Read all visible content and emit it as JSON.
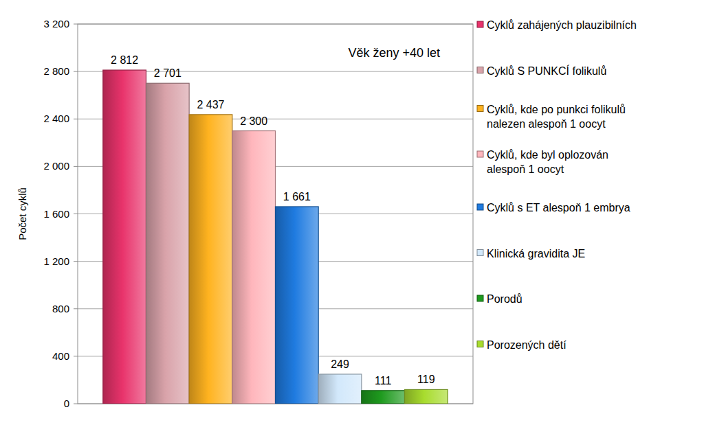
{
  "chart_data": {
    "type": "bar",
    "y_label": "Počet cyklů",
    "annotation": "Věk ženy +40 let",
    "categories": [
      "Cyklů zahájených plauzibilních",
      "Cyklů S PUNKCÍ folikulů",
      "Cyklů, kde po punkci folikulů nalezen alespoň 1 oocyt",
      "Cyklů, kde byl oplozován alespoň 1 oocyt",
      "Cyklů s ET alespoň 1 embrya",
      "Klinická gravidita JE",
      "Porodů",
      "Porozených dětí"
    ],
    "values": [
      2812,
      2701,
      2437,
      2300,
      1661,
      249,
      111,
      119
    ],
    "value_labels": [
      "2 812",
      "2 701",
      "2 437",
      "2 300",
      "1 661",
      "249",
      "111",
      "119"
    ],
    "colors": [
      "#e8336b",
      "#d9a3aa",
      "#ffb320",
      "#ffb6bc",
      "#1f7be0",
      "#d2e8fb",
      "#1e9a1e",
      "#a8dc2e"
    ],
    "ylim": [
      0,
      3200
    ],
    "yticks": [
      0,
      {
        "value": 400,
        "label": "400"
      },
      {
        "value": 800,
        "label": "800"
      },
      {
        "value": 1200,
        "label": "1 200"
      },
      {
        "value": 1600,
        "label": "1 600"
      },
      {
        "value": 2000,
        "label": "2 000"
      },
      {
        "value": 2400,
        "label": "2 400"
      },
      {
        "value": 2800,
        "label": "2 800"
      },
      {
        "value": 3200,
        "label": "3 200"
      }
    ],
    "grid": true,
    "legend": "right",
    "data_labels": true,
    "tick_labels": "y"
  }
}
